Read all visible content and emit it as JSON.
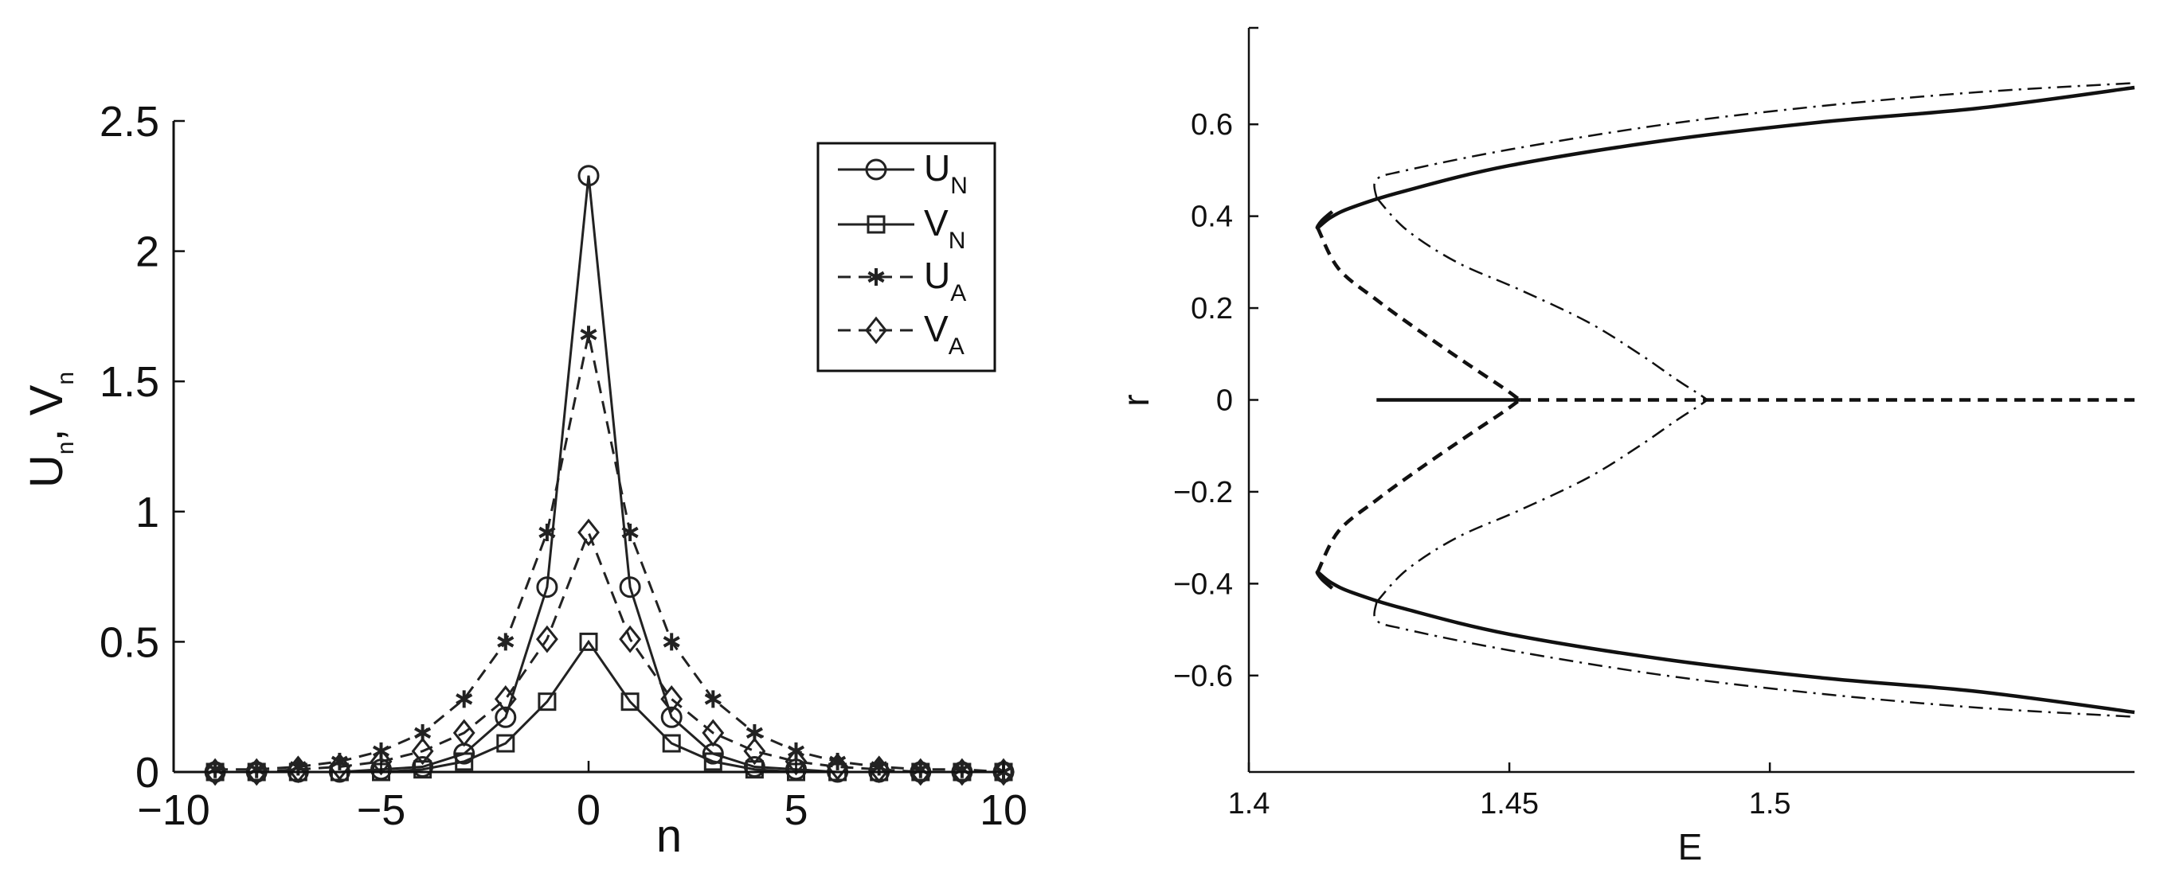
{
  "chart_data": [
    {
      "type": "line",
      "xlabel": "n",
      "ylabel": "U",
      "ylabel_sub": "n",
      "ylabel_sep": ", V",
      "ylabel_sub2": "n",
      "xlim": [
        -10,
        10
      ],
      "ylim": [
        0,
        2.5
      ],
      "xticks": [
        -10,
        -5,
        0,
        5,
        10
      ],
      "xtick_labels": [
        "−10",
        "−5",
        "0",
        "5",
        "10"
      ],
      "yticks": [
        0,
        0.5,
        1,
        1.5,
        2,
        2.5
      ],
      "ytick_labels": [
        "0",
        "0.5",
        "1",
        "1.5",
        "2",
        "2.5"
      ],
      "legend_position": "top-right",
      "x": [
        -9,
        -8,
        -7,
        -6,
        -5,
        -4,
        -3,
        -2,
        -1,
        0,
        1,
        2,
        3,
        4,
        5,
        6,
        7,
        8,
        9,
        10
      ],
      "series": [
        {
          "name": "U",
          "sub": "N",
          "marker": "circle",
          "line": "solid",
          "values": [
            0,
            0,
            0,
            0,
            0.01,
            0.02,
            0.07,
            0.21,
            0.71,
            2.29,
            0.71,
            0.21,
            0.07,
            0.02,
            0.01,
            0,
            0,
            0,
            0,
            0
          ]
        },
        {
          "name": "V",
          "sub": "N",
          "marker": "square",
          "line": "solid",
          "values": [
            0,
            0,
            0,
            0,
            0,
            0.01,
            0.04,
            0.11,
            0.27,
            0.5,
            0.27,
            0.11,
            0.04,
            0.01,
            0,
            0,
            0,
            0,
            0,
            0
          ]
        },
        {
          "name": "U",
          "sub": "A",
          "marker": "star",
          "line": "dashed",
          "values": [
            0.01,
            0.01,
            0.02,
            0.04,
            0.08,
            0.15,
            0.28,
            0.5,
            0.92,
            1.68,
            0.92,
            0.5,
            0.28,
            0.15,
            0.08,
            0.04,
            0.02,
            0.01,
            0.01,
            0
          ]
        },
        {
          "name": "V",
          "sub": "A",
          "marker": "diamond",
          "line": "dashed",
          "values": [
            0,
            0,
            0.01,
            0.02,
            0.04,
            0.08,
            0.15,
            0.28,
            0.51,
            0.92,
            0.51,
            0.28,
            0.15,
            0.08,
            0.04,
            0.02,
            0.01,
            0,
            0,
            0
          ]
        }
      ]
    },
    {
      "type": "line",
      "xlabel": "E",
      "ylabel": "r",
      "xlim": [
        1.4,
        1.57
      ],
      "ylim": [
        -0.81,
        0.81
      ],
      "xticks": [
        1.4,
        1.45,
        1.5
      ],
      "xtick_labels": [
        "1.4",
        "1.45",
        "1.5"
      ],
      "yticks": [
        0.6,
        0.4,
        0.2,
        0,
        -0.2,
        -0.4,
        -0.6
      ],
      "ytick_labels": [
        "0.6",
        "0.4",
        "0.2",
        "0",
        "−0.2",
        "−0.4",
        "−0.6"
      ],
      "series": [
        {
          "style": "solid",
          "width": "thick",
          "x": [
            1.4245,
            1.4303,
            1.4399,
            1.452
          ],
          "y": [
            0,
            0,
            0,
            0
          ]
        },
        {
          "style": "dashed",
          "width": "thick",
          "x": [
            1.452,
            1.47,
            1.5,
            1.57
          ],
          "y": [
            0,
            0,
            0,
            0
          ]
        },
        {
          "style": "solid",
          "width": "thick",
          "x": [
            1.416,
            1.414,
            1.4132,
            1.4158,
            1.42,
            1.43,
            1.45,
            1.48,
            1.51,
            1.54,
            1.57
          ],
          "y": [
            0.41,
            0.39,
            0.375,
            0.398,
            0.42,
            0.455,
            0.51,
            0.565,
            0.605,
            0.635,
            0.68
          ]
        },
        {
          "style": "dashed",
          "width": "thick",
          "x": [
            1.4132,
            1.4172,
            1.4245,
            1.433,
            1.442,
            1.4486,
            1.452
          ],
          "y": [
            0.375,
            0.286,
            0.218,
            0.148,
            0.078,
            0.028,
            0.0
          ]
        },
        {
          "style": "solid",
          "width": "thick",
          "x": [
            1.416,
            1.414,
            1.4132,
            1.4158,
            1.42,
            1.43,
            1.45,
            1.48,
            1.51,
            1.54,
            1.57
          ],
          "y": [
            -0.41,
            -0.39,
            -0.375,
            -0.398,
            -0.42,
            -0.455,
            -0.51,
            -0.565,
            -0.605,
            -0.635,
            -0.68
          ]
        },
        {
          "style": "dashed",
          "width": "thick",
          "x": [
            1.4132,
            1.4172,
            1.4245,
            1.433,
            1.442,
            1.4486,
            1.452
          ],
          "y": [
            -0.375,
            -0.286,
            -0.218,
            -0.148,
            -0.078,
            -0.028,
            0.0
          ]
        },
        {
          "style": "dashdot",
          "width": "thin",
          "x": [
            1.4245,
            1.4303,
            1.4399,
            1.452,
            1.465,
            1.475,
            1.482,
            1.4865,
            1.488
          ],
          "y": [
            0.44,
            0.37,
            0.3,
            0.24,
            0.17,
            0.1,
            0.045,
            0.012,
            0.0
          ]
        },
        {
          "style": "dashdot",
          "width": "thin",
          "x": [
            1.4245,
            1.4245,
            1.4303,
            1.45,
            1.48,
            1.51,
            1.54,
            1.57
          ],
          "y": [
            0.44,
            0.48,
            0.5,
            0.545,
            0.6,
            0.64,
            0.67,
            0.69
          ]
        },
        {
          "style": "dashdot",
          "width": "thin",
          "x": [
            1.4245,
            1.4303,
            1.4399,
            1.452,
            1.465,
            1.475,
            1.482,
            1.4865,
            1.488
          ],
          "y": [
            -0.44,
            -0.37,
            -0.3,
            -0.24,
            -0.17,
            -0.1,
            -0.045,
            -0.012,
            0.0
          ]
        },
        {
          "style": "dashdot",
          "width": "thin",
          "x": [
            1.4245,
            1.4245,
            1.4303,
            1.45,
            1.48,
            1.51,
            1.54,
            1.57
          ],
          "y": [
            -0.44,
            -0.48,
            -0.5,
            -0.545,
            -0.6,
            -0.64,
            -0.67,
            -0.69
          ]
        }
      ]
    }
  ]
}
